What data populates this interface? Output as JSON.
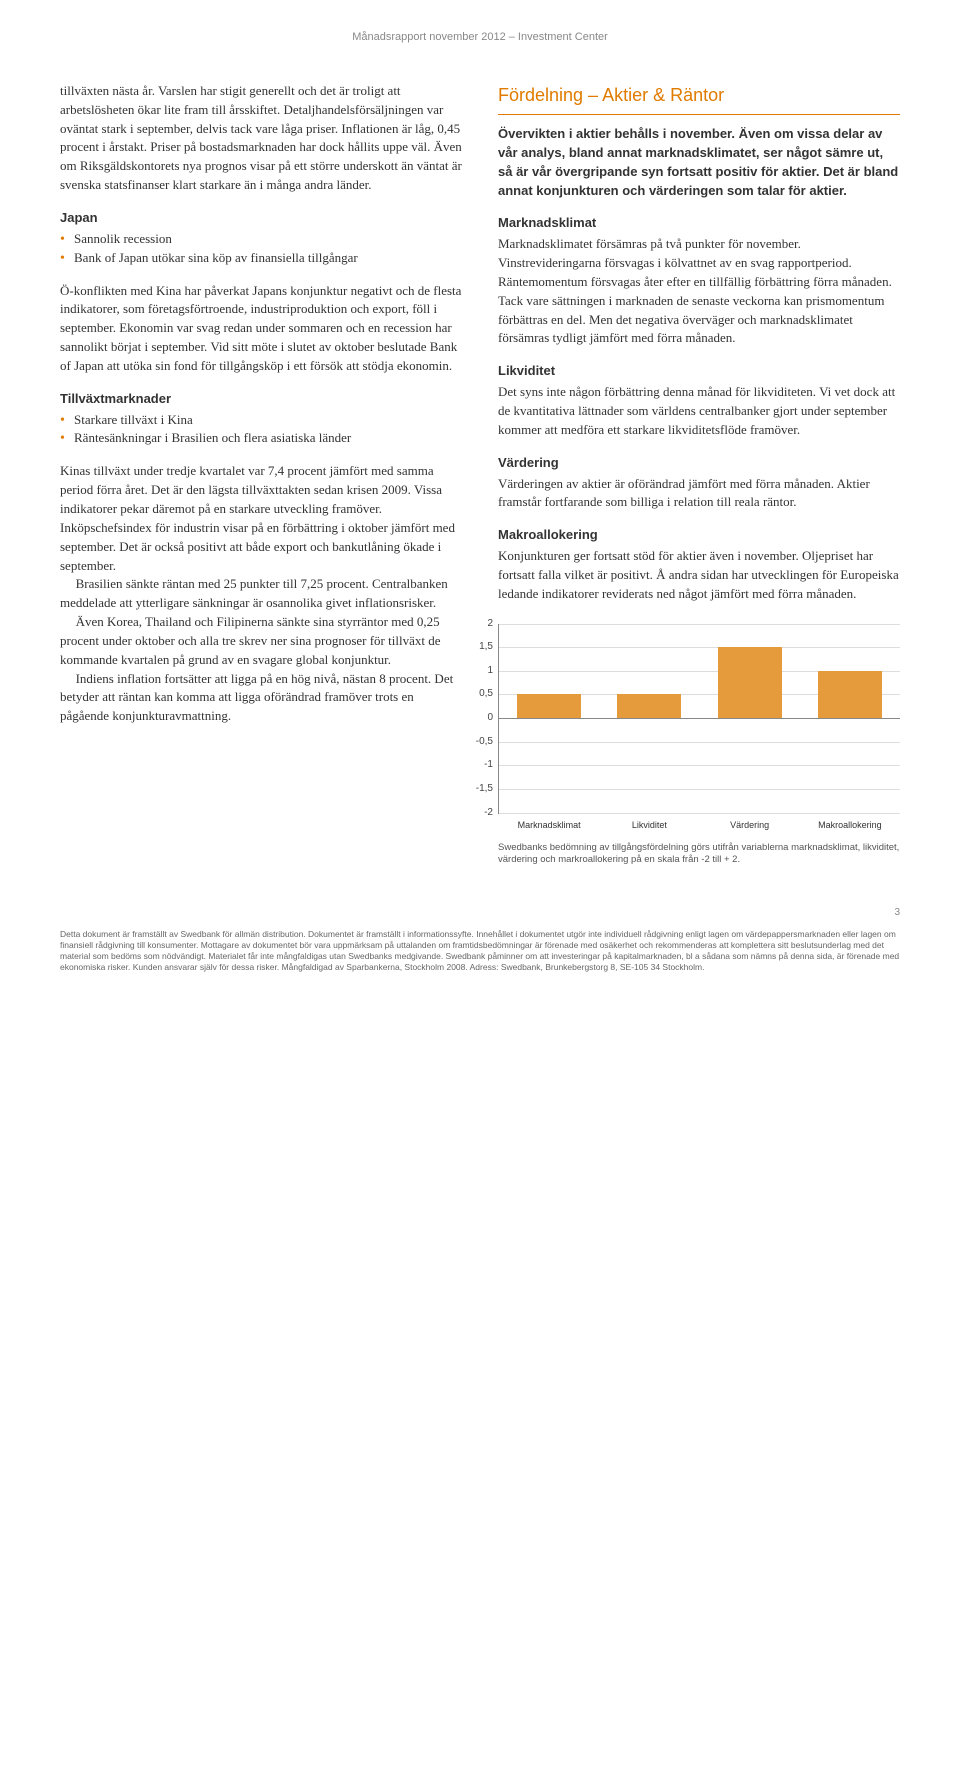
{
  "header": "Månadsrapport november 2012 – Investment Center",
  "pageNumber": "3",
  "left": {
    "para1": "tillväxten nästa år. Varslen har stigit generellt och det är troligt att arbetslösheten ökar lite fram till årsskiftet. Detaljhandelsförsäljningen var oväntat stark i september, delvis tack vare låga priser. Inflationen är låg, 0,45 procent i årstakt. Priser på bostadsmarknaden har dock hållits uppe väl. Även om Riksgäldskontorets nya prognos visar på ett större underskott än väntat är svenska statsfinanser klart starkare än i många andra länder.",
    "japanHead": "Japan",
    "japanBullets": [
      "Sannolik recession",
      "Bank of Japan utökar sina köp av finansiella tillgångar"
    ],
    "japanPara": "Ö-konflikten med Kina har påverkat Japans konjunktur negativt och de flesta indikatorer, som företagsförtroende, industriproduktion och export, föll i september. Ekonomin var svag redan under sommaren och en recession har sannolikt börjat i september. Vid sitt möte i slutet av oktober beslutade Bank of Japan att utöka sin fond för tillgångsköp i ett försök att stödja ekonomin.",
    "emHead": "Tillväxtmarknader",
    "emBullets": [
      "Starkare tillväxt i Kina",
      "Räntesänkningar i Brasilien och flera asiatiska länder"
    ],
    "emPara1": "Kinas tillväxt under tredje kvartalet var 7,4 procent jämfört med samma period förra året. Det är den lägsta tillväxttakten sedan krisen 2009. Vissa indikatorer pekar däremot på en starkare utveckling framöver. Inköpschefsindex för industrin visar på en förbättring i oktober jämfört med september. Det är också positivt att både export och bankutlåning ökade i september.",
    "emPara2": "Brasilien sänkte räntan med 25 punkter till 7,25 procent. Centralbanken meddelade att ytterligare sänkningar är osannolika givet inflationsrisker.",
    "emPara3": "Även Korea, Thailand och Filipinerna sänkte sina styrräntor med 0,25 procent under oktober och alla tre skrev ner sina prognoser för tillväxt de kommande kvartalen på grund av en svagare global konjunktur.",
    "emPara4": "Indiens inflation fortsätter att ligga på en hög nivå, nästan 8 procent. Det betyder att räntan kan komma att ligga oförändrad framöver trots en pågående konjunkturavmattning."
  },
  "right": {
    "sectionTitle": "Fördelning – Aktier & Räntor",
    "lead": "Övervikten i aktier behålls i november. Även om vissa delar av vår analys, bland annat marknadsklimatet, ser något sämre ut, så är vår övergripande syn fortsatt positiv för aktier. Det är bland annat konjunkturen och värderingen som talar för aktier.",
    "mkHead": "Marknadsklimat",
    "mkPara": "Marknadsklimatet försämras på två punkter för november. Vinstrevideringarna försvagas i kölvattnet av en svag rapportperiod. Räntemomentum försvagas åter efter en tillfällig förbättring förra månaden. Tack vare sättningen i marknaden de senaste veckorna kan prismomentum förbättras en del. Men det negativa överväger och marknadsklimatet försämras tydligt jämfört med förra månaden.",
    "liqHead": "Likviditet",
    "liqPara": "Det syns inte någon förbättring denna månad för likviditeten. Vi vet dock att de kvantitativa lättnader som världens centralbanker gjort under september kommer att medföra ett starkare likviditetsflöde framöver.",
    "valHead": "Värdering",
    "valPara": "Värderingen av aktier är oförändrad jämfört med förra månaden. Aktier framstår fortfarande som billiga i relation till reala räntor.",
    "macHead": "Makroallokering",
    "macPara": "Konjunkturen ger fortsatt stöd för aktier även i november. Oljepriset har fortsatt falla vilket är positivt. Å andra sidan har utvecklingen för Europeiska ledande indikatorer reviderats ned något jämfört med förra månaden.",
    "chart": {
      "type": "bar",
      "ymin": -2,
      "ymax": 2,
      "ystep": 0.5,
      "yticks": [
        "2",
        "1,5",
        "1",
        "0,5",
        "0",
        "-0,5",
        "-1",
        "-1,5",
        "-2"
      ],
      "categories": [
        "Marknadsklimat",
        "Likviditet",
        "Värdering",
        "Makroallokering"
      ],
      "values": [
        0.5,
        0.5,
        1.5,
        1.0
      ],
      "bar_color": "#e59a3c",
      "grid_color": "#dddddd",
      "axis_color": "#888888",
      "background": "#ffffff",
      "label_fontsize": 9
    },
    "caption": "Swedbanks bedömning av tillgångsfördelning görs utifrån variablerna marknadsklimat, likviditet, värdering och markroallokering på en skala från -2 till + 2."
  },
  "footnote": "Detta dokument är framställt av Swedbank för allmän distribution. Dokumentet är framställt i informationssyfte. Innehållet i dokumentet utgör inte individuell rådgivning enligt lagen om värdepappersmarknaden eller lagen om finansiell rådgivning till konsumenter. Mottagare av dokumentet bör vara uppmärksam på uttalanden om framtidsbedömningar är förenade med osäkerhet och rekommenderas att komplettera sitt beslutsunderlag med det material som bedöms som nödvändigt. Materialet får inte mångfaldigas utan Swedbanks medgivande. Swedbank påminner om att investeringar på kapitalmarknaden, bl a sådana som nämns på denna sida, är förenade med ekonomiska risker. Kunden ansvarar själv för dessa risker. Mångfaldigad av Sparbankerna, Stockholm 2008. Adress: Swedbank, Brunkebergstorg 8, SE-105 34 Stockholm."
}
